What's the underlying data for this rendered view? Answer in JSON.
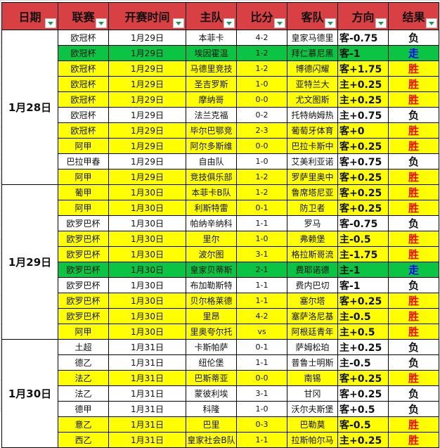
{
  "colors": {
    "header": "#d94043",
    "win_row": "#ffff00",
    "push_row": "#0bc443",
    "win_text": "#ff0000",
    "push_text": "#0000ff",
    "loss_text": "#111111"
  },
  "headers": [
    "日期",
    "联赛",
    "开赛时间",
    "主队",
    "比分",
    "客队",
    "方向",
    "结果"
  ],
  "groups": [
    {
      "date": "1月28日",
      "rows": [
        {
          "league": "欧冠杯",
          "time": "1月29日",
          "home": "本菲卡",
          "score": "4-2",
          "away": "皇家马德里",
          "dir": "客-0.75",
          "result": "负",
          "type": "white"
        },
        {
          "league": "欧冠杯",
          "time": "1月29日",
          "home": "埃因霍温",
          "score": "1-2",
          "away": "拜仁慕尼黑",
          "dir": "客-1",
          "result": "走",
          "type": "green"
        },
        {
          "league": "欧冠杯",
          "time": "1月29日",
          "home": "马德里竞技",
          "score": "1-2",
          "away": "博德闪耀",
          "dir": "客+1.75",
          "result": "胜",
          "type": "yellow"
        },
        {
          "league": "欧冠杯",
          "time": "1月29日",
          "home": "圣吉罗斯",
          "score": "1-0",
          "away": "亚特兰大",
          "dir": "主+0.25",
          "result": "胜",
          "type": "yellow"
        },
        {
          "league": "欧冠杯",
          "time": "1月29日",
          "home": "摩纳哥",
          "score": "0-0",
          "away": "尤文图斯",
          "dir": "主+0.25",
          "result": "胜",
          "type": "yellow"
        },
        {
          "league": "欧冠杯",
          "time": "1月29日",
          "home": "法兰克福",
          "score": "0-2",
          "away": "托特纳姆热",
          "dir": "主+0.75",
          "result": "负",
          "type": "white"
        },
        {
          "league": "欧冠杯",
          "time": "1月29日",
          "home": "毕尔巴鄂竞",
          "score": "2-3",
          "away": "葡萄牙体育",
          "dir": "客+0",
          "result": "胜",
          "type": "yellow"
        },
        {
          "league": "阿甲",
          "time": "1月29日",
          "home": "阿尔多斯维",
          "score": "0-0",
          "away": "巴拉卡斯中",
          "dir": "客+0.25",
          "result": "胜",
          "type": "yellow"
        },
        {
          "league": "巴拉甲春",
          "time": "1月29日",
          "home": "自由队",
          "score": "1-0",
          "away": "艾美利亚诺",
          "dir": "客+0.75",
          "result": "负",
          "type": "white"
        },
        {
          "league": "阿甲",
          "time": "1月29日",
          "home": "竞技俱乐部",
          "score": "1-2",
          "away": "罗萨里奥中",
          "dir": "客+0.25",
          "result": "胜",
          "type": "yellow"
        }
      ]
    },
    {
      "date": "1月29日",
      "rows": [
        {
          "league": "葡甲",
          "time": "1月30日",
          "home": "本菲卡B队",
          "score": "1-2",
          "away": "鲁席塔尼亚",
          "dir": "客+0.25",
          "result": "胜",
          "type": "yellow"
        },
        {
          "league": "阿甲",
          "time": "1月30日",
          "home": "利斯特雷",
          "score": "0-1",
          "away": "防卫者",
          "dir": "客+0.25",
          "result": "胜",
          "type": "yellow"
        },
        {
          "league": "欧罗巴杯",
          "time": "1月30日",
          "home": "帕纳辛纳科",
          "score": "1-1",
          "away": "罗马",
          "dir": "客-0.75",
          "result": "负",
          "type": "white"
        },
        {
          "league": "欧罗巴杯",
          "time": "1月30日",
          "home": "里尔",
          "score": "1-0",
          "away": "弗赖堡",
          "dir": "主-0.5",
          "result": "胜",
          "type": "yellow"
        },
        {
          "league": "欧罗巴杯",
          "time": "1月30日",
          "home": "波尔图",
          "score": "3-1",
          "away": "格拉斯哥流",
          "dir": "主-1.75",
          "result": "胜",
          "type": "yellow"
        },
        {
          "league": "欧罗巴杯",
          "time": "1月30日",
          "home": "皇家贝蒂斯",
          "score": "2-1",
          "away": "费耶诺德",
          "dir": "主-1",
          "result": "走",
          "type": "green"
        },
        {
          "league": "欧罗巴杯",
          "time": "1月30日",
          "home": "布加勒斯特",
          "score": "1-1",
          "away": "费内巴切",
          "dir": "客-1",
          "result": "负",
          "type": "white"
        },
        {
          "league": "欧罗巴杯",
          "time": "1月30日",
          "home": "贝尔格莱德",
          "score": "1-1",
          "away": "塞尔塔",
          "dir": "客+0.25",
          "result": "胜",
          "type": "yellow"
        },
        {
          "league": "欧罗巴杯",
          "time": "1月30日",
          "home": "里昂",
          "score": "4-2",
          "away": "塞萨洛尼基",
          "dir": "主-0.5",
          "result": "胜",
          "type": "yellow"
        },
        {
          "league": "阿甲",
          "time": "1月30日",
          "home": "里奥夸尔托",
          "score": "vs",
          "away": "阿根廷青年",
          "dir": "主+0.5",
          "result": "胜",
          "type": "yellow"
        }
      ]
    },
    {
      "date": "1月30日",
      "rows": [
        {
          "league": "土超",
          "time": "1月31日",
          "home": "卡斯帕萨",
          "score": "0-1",
          "away": "萨姆松珀",
          "dir": "主+0.25",
          "result": "负",
          "type": "white"
        },
        {
          "league": "德乙",
          "time": "1月31日",
          "home": "纽伦堡",
          "score": "1-1",
          "away": "普鲁士明斯",
          "dir": "主-0.5",
          "result": "负",
          "type": "white"
        },
        {
          "league": "法乙",
          "time": "1月31日",
          "home": "巴斯蒂亚",
          "score": "0-0",
          "away": "南锡",
          "dir": "客+0.25",
          "result": "胜",
          "type": "yellow"
        },
        {
          "league": "法乙",
          "time": "1月31日",
          "home": "蒙彼利埃",
          "score": "3-1",
          "away": "甘冈",
          "dir": "客+0.25",
          "result": "负",
          "type": "white"
        },
        {
          "league": "德甲",
          "time": "1月31日",
          "home": "科隆",
          "score": "1-0",
          "away": "沃尔夫斯堡",
          "dir": "客+0.5",
          "result": "负",
          "type": "white"
        },
        {
          "league": "意乙",
          "time": "1月31日",
          "home": "巴里",
          "score": "0-3",
          "away": "巴勒莫",
          "dir": "客-0.5",
          "result": "胜",
          "type": "yellow"
        },
        {
          "league": "西乙",
          "time": "1月31日",
          "home": "皇家社会B队",
          "score": "1-1",
          "away": "拉斯帕尔马",
          "dir": "主+0.25",
          "result": "胜",
          "type": "yellow"
        }
      ]
    }
  ]
}
